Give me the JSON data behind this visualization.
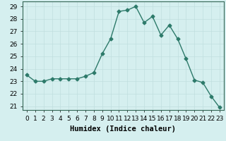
{
  "x": [
    0,
    1,
    2,
    3,
    4,
    5,
    6,
    7,
    8,
    9,
    10,
    11,
    12,
    13,
    14,
    15,
    16,
    17,
    18,
    19,
    20,
    21,
    22,
    23
  ],
  "y": [
    23.5,
    23.0,
    23.0,
    23.2,
    23.2,
    23.2,
    23.2,
    23.4,
    23.7,
    25.2,
    26.4,
    28.6,
    28.7,
    29.0,
    27.7,
    28.2,
    26.7,
    27.5,
    26.4,
    24.8,
    23.1,
    22.9,
    21.8,
    20.9
  ],
  "line_color": "#2d7a6a",
  "marker": "D",
  "marker_size": 2.5,
  "bg_color": "#d5efef",
  "grid_color": "#c0dede",
  "xlabel": "Humidex (Indice chaleur)",
  "ylim": [
    20.7,
    29.4
  ],
  "yticks": [
    21,
    22,
    23,
    24,
    25,
    26,
    27,
    28,
    29
  ],
  "xticks": [
    0,
    1,
    2,
    3,
    4,
    5,
    6,
    7,
    8,
    9,
    10,
    11,
    12,
    13,
    14,
    15,
    16,
    17,
    18,
    19,
    20,
    21,
    22,
    23
  ],
  "xlabel_fontsize": 7.5,
  "tick_fontsize": 6.5,
  "axis_color": "#336655"
}
